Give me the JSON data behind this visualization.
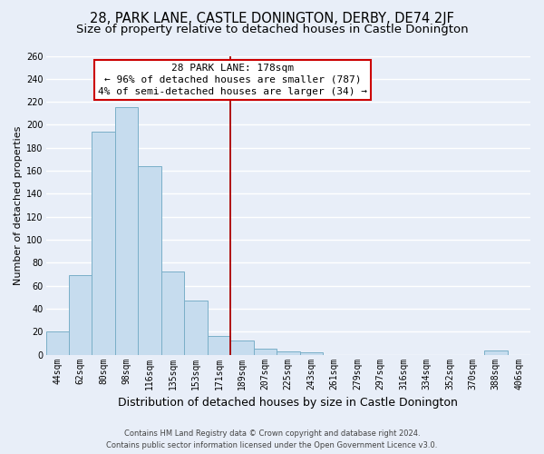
{
  "title": "28, PARK LANE, CASTLE DONINGTON, DERBY, DE74 2JF",
  "subtitle": "Size of property relative to detached houses in Castle Donington",
  "xlabel": "Distribution of detached houses by size in Castle Donington",
  "ylabel": "Number of detached properties",
  "categories": [
    "44sqm",
    "62sqm",
    "80sqm",
    "98sqm",
    "116sqm",
    "135sqm",
    "153sqm",
    "171sqm",
    "189sqm",
    "207sqm",
    "225sqm",
    "243sqm",
    "261sqm",
    "279sqm",
    "297sqm",
    "316sqm",
    "334sqm",
    "352sqm",
    "370sqm",
    "388sqm",
    "406sqm"
  ],
  "values": [
    20,
    69,
    194,
    215,
    164,
    72,
    47,
    16,
    12,
    5,
    3,
    2,
    0,
    0,
    0,
    0,
    0,
    0,
    0,
    4,
    0
  ],
  "bar_color": "#c6dcee",
  "bar_edge_color": "#7aafc8",
  "vline_x_index": 7.5,
  "vline_color": "#aa0000",
  "annotation_title": "28 PARK LANE: 178sqm",
  "annotation_line1": "← 96% of detached houses are smaller (787)",
  "annotation_line2": "4% of semi-detached houses are larger (34) →",
  "annotation_box_color": "#ffffff",
  "annotation_box_edge": "#cc0000",
  "ylim": [
    0,
    260
  ],
  "yticks": [
    0,
    20,
    40,
    60,
    80,
    100,
    120,
    140,
    160,
    180,
    200,
    220,
    240,
    260
  ],
  "footer1": "Contains HM Land Registry data © Crown copyright and database right 2024.",
  "footer2": "Contains public sector information licensed under the Open Government Licence v3.0.",
  "bg_color": "#e8eef8",
  "grid_color": "#d0d8e8",
  "title_fontsize": 10.5,
  "subtitle_fontsize": 9.5,
  "tick_fontsize": 7,
  "ylabel_fontsize": 8,
  "xlabel_fontsize": 9
}
